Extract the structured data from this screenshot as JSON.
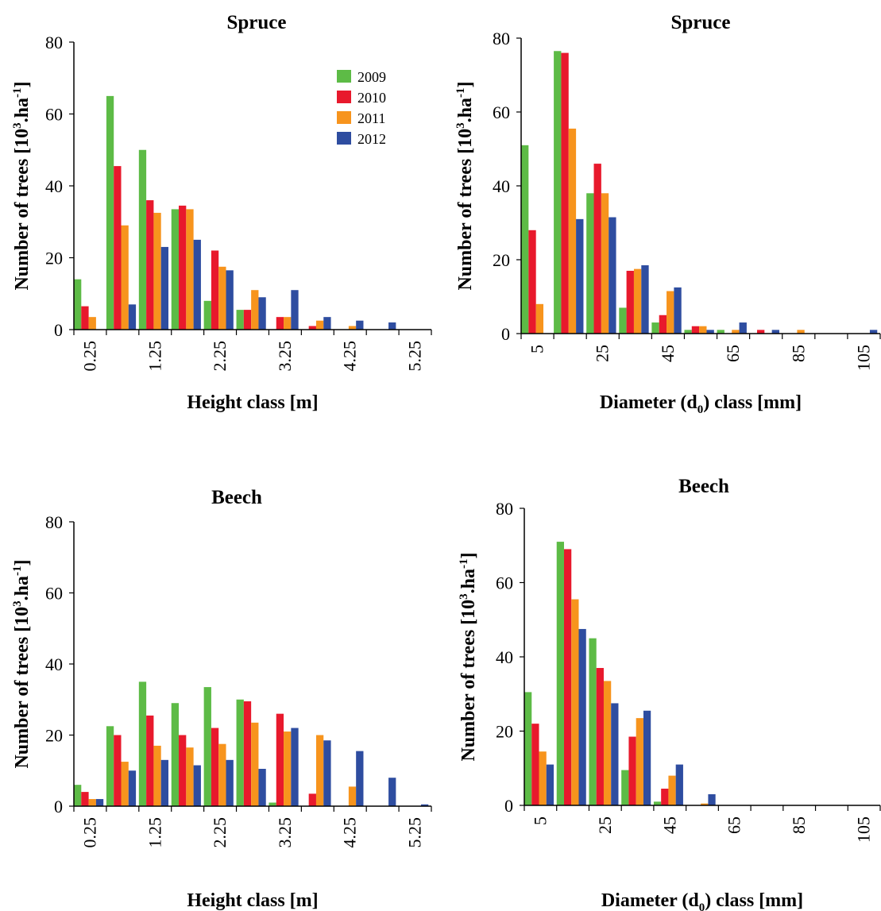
{
  "series_colors": {
    "2009": "#5dbb46",
    "2010": "#e8192c",
    "2011": "#f7941d",
    "2012": "#2e4da0"
  },
  "chart_data": [
    {
      "type": "bar",
      "title": "Spruce",
      "xlabel": "Height class [m]",
      "ylabel_main": "Number of trees [10",
      "ylabel_sup1": "3",
      "ylabel_mid": ".ha",
      "ylabel_sup2": "-1",
      "ylabel_end": "]",
      "ylim": [
        0,
        80
      ],
      "yticks": [
        0,
        20,
        40,
        60,
        80
      ],
      "categories": [
        "0.25",
        "0.75",
        "1.25",
        "1.75",
        "2.25",
        "2.75",
        "3.25",
        "3.75",
        "4.25",
        "4.75",
        "5.25"
      ],
      "tick_labels": [
        "0.25",
        "",
        "1.25",
        "",
        "2.25",
        "",
        "3.25",
        "",
        "4.25",
        "",
        "5.25"
      ],
      "legend": {
        "placement": "top-right",
        "entries": [
          "2009",
          "2010",
          "2011",
          "2012"
        ]
      },
      "series": [
        {
          "name": "2009",
          "values": [
            14,
            65,
            50,
            33.5,
            8,
            5.5,
            0,
            0,
            0,
            0,
            0
          ]
        },
        {
          "name": "2010",
          "values": [
            6.5,
            45.5,
            36,
            34.5,
            22,
            5.5,
            3.5,
            1,
            0,
            0,
            0
          ]
        },
        {
          "name": "2011",
          "values": [
            3.5,
            29,
            32.5,
            33.5,
            17.5,
            11,
            3.5,
            2.5,
            1,
            0,
            0
          ]
        },
        {
          "name": "2012",
          "values": [
            0,
            7,
            23,
            25,
            16.5,
            9,
            11,
            3.5,
            2.5,
            2,
            0
          ]
        }
      ]
    },
    {
      "type": "bar",
      "title": "Spruce",
      "xlabel_main": "Diameter (d",
      "xlabel_sub": "0",
      "xlabel_end": ") class [mm]",
      "ylabel_main": "Number of trees [10",
      "ylabel_sup1": "3",
      "ylabel_mid": ".ha",
      "ylabel_sup2": "-1",
      "ylabel_end": "]",
      "ylim": [
        0,
        80
      ],
      "yticks": [
        0,
        20,
        40,
        60,
        80
      ],
      "categories": [
        "5",
        "15",
        "25",
        "35",
        "45",
        "55",
        "65",
        "75",
        "85",
        "95",
        "105"
      ],
      "tick_labels": [
        "5",
        "",
        "25",
        "",
        "45",
        "",
        "65",
        "",
        "85",
        "",
        "105"
      ],
      "series": [
        {
          "name": "2009",
          "values": [
            51,
            76.5,
            38,
            7,
            3,
            1,
            1,
            0,
            0,
            0,
            0
          ]
        },
        {
          "name": "2010",
          "values": [
            28,
            76,
            46,
            17,
            5,
            2,
            0,
            1,
            0,
            0,
            0
          ]
        },
        {
          "name": "2011",
          "values": [
            8,
            55.5,
            38,
            17.5,
            11.5,
            2,
            1,
            0,
            1,
            0,
            0
          ]
        },
        {
          "name": "2012",
          "values": [
            0,
            31,
            31.5,
            18.5,
            12.5,
            1,
            3,
            1,
            0,
            0,
            1
          ]
        }
      ]
    },
    {
      "type": "bar",
      "title": "Beech",
      "xlabel": "Height class [m]",
      "ylabel_main": "Number of trees [10",
      "ylabel_sup1": "3",
      "ylabel_mid": ".ha",
      "ylabel_sup2": "-1",
      "ylabel_end": "]",
      "ylim": [
        0,
        80
      ],
      "yticks": [
        0,
        20,
        40,
        60,
        80
      ],
      "categories": [
        "0.25",
        "0.75",
        "1.25",
        "1.75",
        "2.25",
        "2.75",
        "3.25",
        "3.75",
        "4.25",
        "4.75",
        "5.25"
      ],
      "tick_labels": [
        "0.25",
        "",
        "1.25",
        "",
        "2.25",
        "",
        "3.25",
        "",
        "4.25",
        "",
        "5.25"
      ],
      "series": [
        {
          "name": "2009",
          "values": [
            6,
            22.5,
            35,
            29,
            33.5,
            30,
            1,
            0,
            0,
            0,
            0
          ]
        },
        {
          "name": "2010",
          "values": [
            4,
            20,
            25.5,
            20,
            22,
            29.5,
            26,
            3.5,
            0,
            0,
            0
          ]
        },
        {
          "name": "2011",
          "values": [
            2,
            12.5,
            17,
            16.5,
            17.5,
            23.5,
            21,
            20,
            5.5,
            0,
            0
          ]
        },
        {
          "name": "2012",
          "values": [
            2,
            10,
            13,
            11.5,
            13,
            10.5,
            22,
            18.5,
            15.5,
            8,
            0.5
          ]
        }
      ]
    },
    {
      "type": "bar",
      "title": "Beech",
      "xlabel_main": "Diameter (d",
      "xlabel_sub": "0",
      "xlabel_end": ") class [mm]",
      "ylabel_main": "Number of trees [10",
      "ylabel_sup1": "3",
      "ylabel_mid": ".ha",
      "ylabel_sup2": "-1",
      "ylabel_end": "]",
      "ylim": [
        0,
        80
      ],
      "yticks": [
        0,
        20,
        40,
        60,
        80
      ],
      "categories": [
        "5",
        "15",
        "25",
        "35",
        "45",
        "55",
        "65",
        "75",
        "85",
        "95",
        "105"
      ],
      "tick_labels": [
        "5",
        "",
        "25",
        "",
        "45",
        "",
        "65",
        "",
        "85",
        "",
        "105"
      ],
      "series": [
        {
          "name": "2009",
          "values": [
            30.5,
            71,
            45,
            9.5,
            1,
            0,
            0,
            0,
            0,
            0,
            0
          ]
        },
        {
          "name": "2010",
          "values": [
            22,
            69,
            37,
            18.5,
            4.5,
            0,
            0,
            0,
            0,
            0,
            0
          ]
        },
        {
          "name": "2011",
          "values": [
            14.5,
            55.5,
            33.5,
            23.5,
            8,
            0.5,
            0,
            0,
            0,
            0,
            0
          ]
        },
        {
          "name": "2012",
          "values": [
            11,
            47.5,
            27.5,
            25.5,
            11,
            3,
            0,
            0,
            0,
            0,
            0
          ]
        }
      ]
    }
  ]
}
